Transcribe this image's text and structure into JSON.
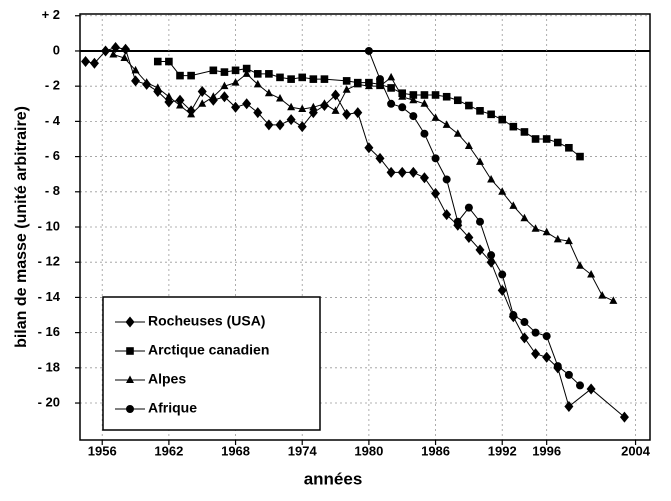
{
  "chart_data": {
    "type": "line",
    "x_label": "années",
    "y_label": "bilan de masse (unité arbitraire)",
    "xlim": [
      1954,
      2005.3
    ],
    "ylim": [
      -22.1,
      2.1
    ],
    "xticks": [
      1956,
      1962,
      1968,
      1974,
      1980,
      1986,
      1992,
      1996,
      2004
    ],
    "yticks": [
      {
        "value": 2,
        "label": "+ 2"
      },
      0,
      {
        "value": -2,
        "label": "- 2"
      },
      {
        "value": -4,
        "label": "- 4"
      },
      {
        "value": -6,
        "label": "- 6"
      },
      {
        "value": -8,
        "label": "- 8"
      },
      {
        "value": -10,
        "label": "- 10"
      },
      {
        "value": -12,
        "label": "- 12"
      },
      {
        "value": -14,
        "label": "- 14"
      },
      {
        "value": -16,
        "label": "- 16"
      },
      {
        "value": -18,
        "label": "- 18"
      },
      {
        "value": -20,
        "label": "- 20"
      }
    ],
    "grid": true,
    "legend": "lower left",
    "series": [
      {
        "name": "Rocheuses (USA)",
        "color": "#000000",
        "marker": "diamond",
        "x": [
          1954.5,
          1955.3,
          1956.3,
          1957.2,
          1958.1,
          1959,
          1960,
          1961,
          1962,
          1963,
          1964,
          1965,
          1966,
          1967,
          1968,
          1969,
          1970,
          1971,
          1972,
          1973,
          1974,
          1975,
          1976,
          1977,
          1978,
          1979,
          1980,
          1981,
          1982,
          1983,
          1984,
          1985,
          1986,
          1987,
          1988,
          1989,
          1990,
          1991,
          1992,
          1993,
          1994,
          1995,
          1996,
          1997,
          1998,
          2000,
          2003
        ],
        "values": [
          -0.6,
          -0.7,
          0.0,
          0.2,
          0.1,
          -1.7,
          -1.9,
          -2.3,
          -2.9,
          -2.8,
          -3.4,
          -2.3,
          -2.8,
          -2.6,
          -3.2,
          -3.0,
          -3.5,
          -4.2,
          -4.2,
          -3.9,
          -4.3,
          -3.5,
          -3.1,
          -2.5,
          -3.6,
          -3.5,
          -5.5,
          -6.1,
          -6.9,
          -6.9,
          -6.9,
          -7.2,
          -8.1,
          -9.3,
          -9.9,
          -10.6,
          -11.3,
          -12.0,
          -13.6,
          -15.1,
          -16.3,
          -17.2,
          -17.4,
          -18.0,
          -20.2,
          -19.2,
          -20.8
        ]
      },
      {
        "name": "Arctique canadien",
        "color": "#000000",
        "marker": "square",
        "x": [
          1961,
          1962,
          1963,
          1964,
          1966,
          1967,
          1968,
          1969,
          1970,
          1971,
          1972,
          1973,
          1974,
          1975,
          1976,
          1978,
          1979,
          1980,
          1981,
          1982,
          1983,
          1984,
          1985,
          1986,
          1987,
          1988,
          1989,
          1990,
          1991,
          1992,
          1993,
          1994,
          1995,
          1996,
          1997,
          1998,
          1999
        ],
        "values": [
          -0.6,
          -0.6,
          -1.4,
          -1.4,
          -1.1,
          -1.2,
          -1.1,
          -1.0,
          -1.3,
          -1.3,
          -1.5,
          -1.6,
          -1.5,
          -1.6,
          -1.6,
          -1.7,
          -1.8,
          -1.8,
          -1.9,
          -2.1,
          -2.4,
          -2.5,
          -2.5,
          -2.5,
          -2.6,
          -2.8,
          -3.1,
          -3.4,
          -3.6,
          -3.9,
          -4.3,
          -4.6,
          -5.0,
          -5.0,
          -5.2,
          -5.5,
          -6.0
        ]
      },
      {
        "name": "Alpes",
        "color": "#000000",
        "marker": "triangle",
        "x": [
          1957,
          1958,
          1959,
          1960,
          1961,
          1962,
          1963,
          1964,
          1965,
          1966,
          1967,
          1968,
          1969,
          1970,
          1971,
          1972,
          1973,
          1974,
          1975,
          1976,
          1977,
          1978,
          1979,
          1980,
          1981,
          1982,
          1983,
          1984,
          1985,
          1986,
          1987,
          1988,
          1989,
          1990,
          1991,
          1992,
          1993,
          1994,
          1995,
          1996,
          1997,
          1998,
          1999,
          2000,
          2001,
          2002
        ],
        "values": [
          -0.2,
          -0.4,
          -1.1,
          -1.8,
          -2.1,
          -2.6,
          -3.1,
          -3.6,
          -3.0,
          -2.6,
          -2.0,
          -1.8,
          -1.3,
          -1.9,
          -2.4,
          -2.7,
          -3.2,
          -3.3,
          -3.2,
          -3.0,
          -3.4,
          -2.2,
          -1.9,
          -2.0,
          -2.0,
          -1.5,
          -2.6,
          -2.8,
          -3.0,
          -3.8,
          -4.2,
          -4.7,
          -5.4,
          -6.3,
          -7.3,
          -8.0,
          -8.8,
          -9.5,
          -10.1,
          -10.3,
          -10.7,
          -10.8,
          -12.2,
          -12.7,
          -13.9,
          -14.2
        ]
      },
      {
        "name": "Afrique",
        "color": "#000000",
        "marker": "circle",
        "x": [
          1980,
          1981,
          1982,
          1983,
          1984,
          1985,
          1986,
          1987,
          1988,
          1989,
          1990,
          1991,
          1992,
          1993,
          1994,
          1995,
          1996,
          1997,
          1998,
          1999
        ],
        "values": [
          0.0,
          -1.6,
          -3.0,
          -3.2,
          -3.7,
          -4.7,
          -6.1,
          -7.3,
          -9.7,
          -8.9,
          -9.7,
          -11.6,
          -12.7,
          -15.0,
          -15.4,
          -16.0,
          -16.2,
          -17.9,
          -18.4,
          -19.0
        ]
      }
    ]
  }
}
